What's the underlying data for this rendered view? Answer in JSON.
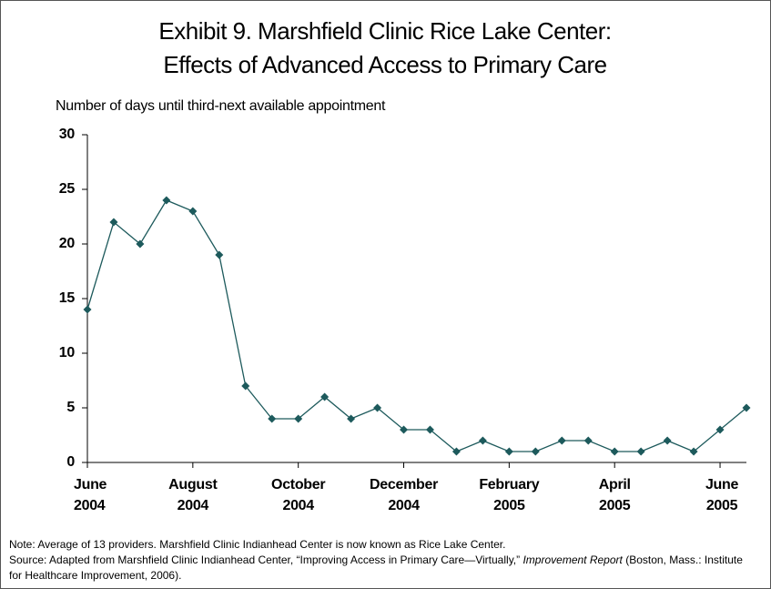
{
  "chart_data": {
    "type": "line",
    "title": "Exhibit 9. Marshfield Clinic Rice Lake Center:",
    "subtitle": "Effects of Advanced Access to Primary Care",
    "y_label": "Number of days until third-next available appointment",
    "categories": [
      "June 2004",
      null,
      null,
      null,
      "August 2004",
      null,
      null,
      null,
      "October 2004",
      null,
      null,
      null,
      "December 2004",
      null,
      null,
      null,
      "February 2005",
      null,
      null,
      null,
      "April 2005",
      null,
      null,
      null,
      "June 2005",
      null
    ],
    "series": [
      {
        "name": null,
        "color": "#1d5a5c",
        "values": [
          14,
          22,
          20,
          24,
          23,
          19,
          7,
          4,
          4,
          6,
          4,
          5,
          3,
          3,
          1,
          2,
          1,
          1,
          2,
          2,
          1,
          1,
          2,
          1,
          3,
          5
        ]
      }
    ],
    "ylim": [
      0,
      30
    ],
    "yticks": [
      0,
      5,
      10,
      15,
      20,
      25,
      30
    ],
    "note": "Note: Average of 13 providers. Marshfield Clinic Indianhead Center is now known as Rice Lake Center.",
    "source": [
      "Source: Adapted from Marshfield Clinic Indianhead Center, “Improving Access in Primary Care—Virtually,” ",
      "Improvement Report",
      " (Boston, Mass.: Institute for Healthcare Improvement, 2006)."
    ]
  }
}
